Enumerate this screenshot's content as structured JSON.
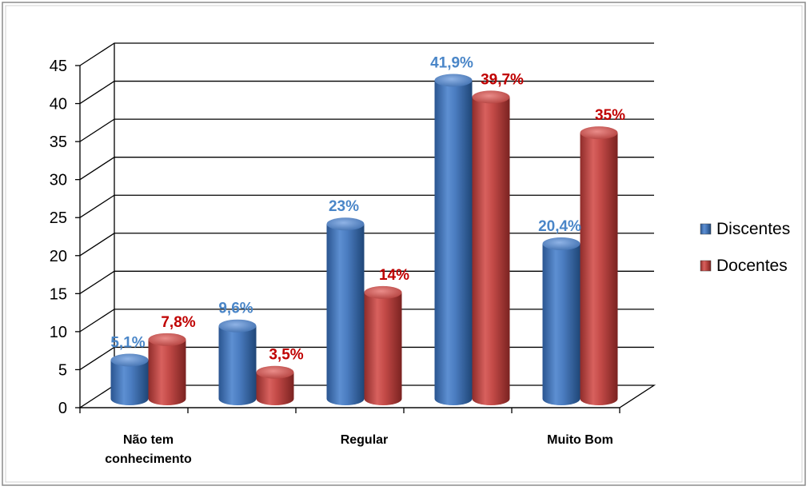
{
  "chart_data": {
    "type": "bar",
    "title": "",
    "xlabel": "",
    "ylabel": "",
    "ylim": [
      0,
      45
    ],
    "yticks": [
      0,
      5,
      10,
      15,
      20,
      25,
      30,
      35,
      40,
      45
    ],
    "grid": true,
    "legend_position": "right",
    "categories": [
      "Não tem conhecimento",
      "",
      "Regular",
      "",
      "Muito Bom"
    ],
    "category_label_lines": [
      [
        "Não tem",
        "conhecimento"
      ],
      [],
      [
        "Regular"
      ],
      [],
      [
        "Muito Bom"
      ]
    ],
    "series": [
      {
        "name": "Discentes",
        "color": "#4f81bd",
        "label_color": "#4a86c8",
        "values": [
          5.1,
          9.6,
          23,
          41.9,
          20.4
        ],
        "labels": [
          "5,1%",
          "9,6%",
          "23%",
          "41,9%",
          "20,4%"
        ]
      },
      {
        "name": "Docentes",
        "color": "#c0504d",
        "label_color": "#c00000",
        "values": [
          7.8,
          3.5,
          14,
          39.7,
          35
        ],
        "labels": [
          "7,8%",
          "3,5%",
          "14%",
          "39,7%",
          "35%"
        ]
      }
    ]
  }
}
